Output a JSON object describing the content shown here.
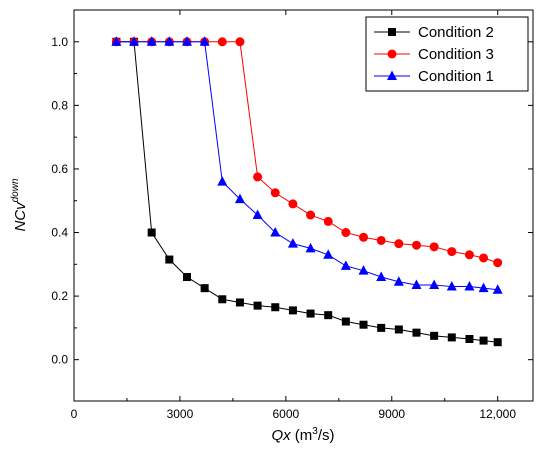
{
  "chart_data": {
    "type": "line",
    "xlabel": "Qx (m³/s)",
    "xlabel_main": "Qx",
    "xlabel_unit_pre": " (m",
    "xlabel_unit_sup": "3",
    "xlabel_unit_post": "/s)",
    "ylabel": "NCv^down",
    "ylabel_main": "NCv",
    "ylabel_sup": "down",
    "xlim": [
      0,
      13000
    ],
    "ylim": [
      -0.13,
      1.1
    ],
    "xticks": [
      0,
      3000,
      6000,
      9000,
      12000
    ],
    "xtick_labels": [
      "0",
      "3000",
      "6000",
      "9000",
      "12,000"
    ],
    "yticks": [
      0.0,
      0.2,
      0.4,
      0.6,
      0.8,
      1.0
    ],
    "ytick_labels": [
      "0.0",
      "0.2",
      "0.4",
      "0.6",
      "0.8",
      "1.0"
    ],
    "legend_position": "top-right",
    "series": [
      {
        "name": "Condition 2",
        "color": "#000000",
        "marker": "square",
        "x": [
          1200,
          1700,
          2200,
          2700,
          3200,
          3700,
          4200,
          4700,
          5200,
          5700,
          6200,
          6700,
          7200,
          7700,
          8200,
          8700,
          9200,
          9700,
          10200,
          10700,
          11200,
          11600,
          12000
        ],
        "y": [
          1.0,
          1.0,
          0.4,
          0.315,
          0.26,
          0.225,
          0.19,
          0.18,
          0.17,
          0.165,
          0.155,
          0.145,
          0.14,
          0.12,
          0.11,
          0.1,
          0.095,
          0.085,
          0.075,
          0.07,
          0.065,
          0.06,
          0.055
        ]
      },
      {
        "name": "Condition 3",
        "color": "#ff0000",
        "marker": "circle",
        "x": [
          1200,
          1700,
          2200,
          2700,
          3200,
          3700,
          4200,
          4700,
          5200,
          5700,
          6200,
          6700,
          7200,
          7700,
          8200,
          8700,
          9200,
          9700,
          10200,
          10700,
          11200,
          11600,
          12000
        ],
        "y": [
          1.0,
          1.0,
          1.0,
          1.0,
          1.0,
          1.0,
          1.0,
          1.0,
          0.575,
          0.525,
          0.49,
          0.455,
          0.435,
          0.4,
          0.385,
          0.375,
          0.365,
          0.36,
          0.355,
          0.34,
          0.33,
          0.32,
          0.305
        ]
      },
      {
        "name": "Condition 1",
        "color": "#0000ff",
        "marker": "triangle",
        "x": [
          1200,
          1700,
          2200,
          2700,
          3200,
          3700,
          4200,
          4700,
          5200,
          5700,
          6200,
          6700,
          7200,
          7700,
          8200,
          8700,
          9200,
          9700,
          10200,
          10700,
          11200,
          11600,
          12000
        ],
        "y": [
          1.0,
          1.0,
          1.0,
          1.0,
          1.0,
          1.0,
          0.56,
          0.505,
          0.455,
          0.4,
          0.365,
          0.35,
          0.33,
          0.295,
          0.28,
          0.26,
          0.245,
          0.235,
          0.235,
          0.23,
          0.23,
          0.225,
          0.22
        ]
      }
    ]
  }
}
